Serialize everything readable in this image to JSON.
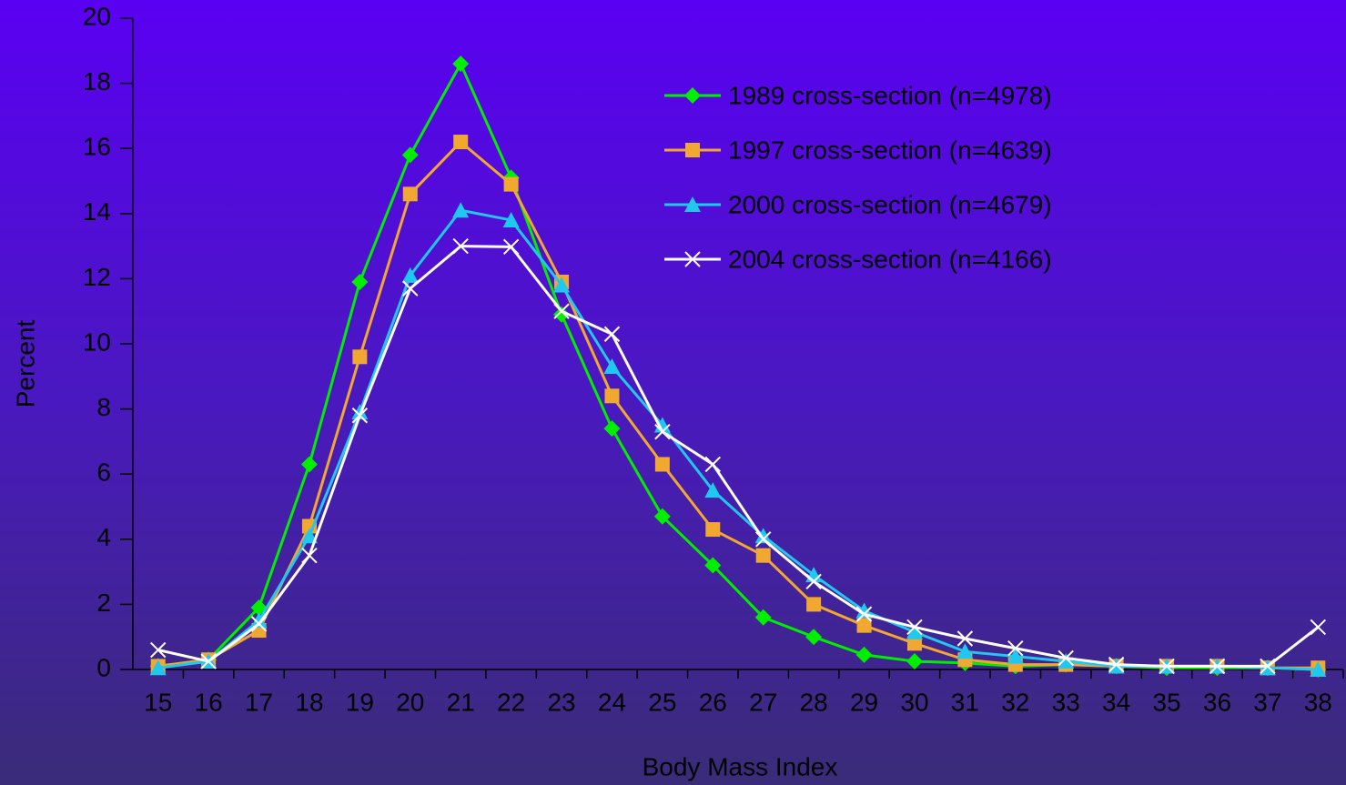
{
  "chart_data": {
    "type": "line",
    "x_label": "Body Mass Index",
    "y_label": "Percent",
    "categories": [
      15,
      16,
      17,
      18,
      19,
      20,
      21,
      22,
      23,
      24,
      25,
      26,
      27,
      28,
      29,
      30,
      31,
      32,
      33,
      34,
      35,
      36,
      37,
      38
    ],
    "ylim": [
      0,
      20
    ],
    "yticks": [
      0,
      2,
      4,
      6,
      8,
      10,
      12,
      14,
      16,
      18,
      20
    ],
    "legend": "upper right",
    "series": [
      {
        "name": "1989 cross-section (n=4978)",
        "color": "#00ee00",
        "marker": "diamond",
        "values": [
          0.1,
          0.3,
          1.9,
          6.3,
          11.9,
          15.8,
          18.6,
          15.1,
          10.9,
          7.4,
          4.7,
          3.2,
          1.6,
          1.0,
          0.45,
          0.25,
          0.2,
          0.1,
          0.15,
          0.1,
          0.05,
          0.05,
          0.05,
          0.0
        ]
      },
      {
        "name": "1997 cross-section (n=4639)",
        "color": "#f0a830",
        "marker": "square",
        "values": [
          0.1,
          0.3,
          1.2,
          4.4,
          9.6,
          14.6,
          16.2,
          14.9,
          11.9,
          8.4,
          6.3,
          4.3,
          3.5,
          2.0,
          1.35,
          0.8,
          0.3,
          0.15,
          0.15,
          0.1,
          0.1,
          0.1,
          0.05,
          0.05
        ]
      },
      {
        "name": "2000 cross-section (n=4679)",
        "color": "#20c8f0",
        "marker": "triangle",
        "values": [
          0.05,
          0.25,
          1.5,
          4.1,
          7.9,
          12.1,
          14.1,
          13.8,
          11.8,
          9.3,
          7.5,
          5.5,
          4.1,
          2.9,
          1.8,
          1.15,
          0.55,
          0.4,
          0.25,
          0.1,
          0.1,
          0.1,
          0.05,
          0.0
        ]
      },
      {
        "name": "2004 cross-section (n=4166)",
        "color": "#ffffff",
        "marker": "x",
        "values": [
          0.6,
          0.25,
          1.4,
          3.5,
          7.8,
          11.7,
          13.0,
          12.98,
          11.0,
          10.3,
          7.3,
          6.3,
          4.0,
          2.7,
          1.7,
          1.3,
          0.95,
          0.65,
          0.35,
          0.15,
          0.1,
          0.1,
          0.1,
          1.3
        ]
      }
    ]
  }
}
